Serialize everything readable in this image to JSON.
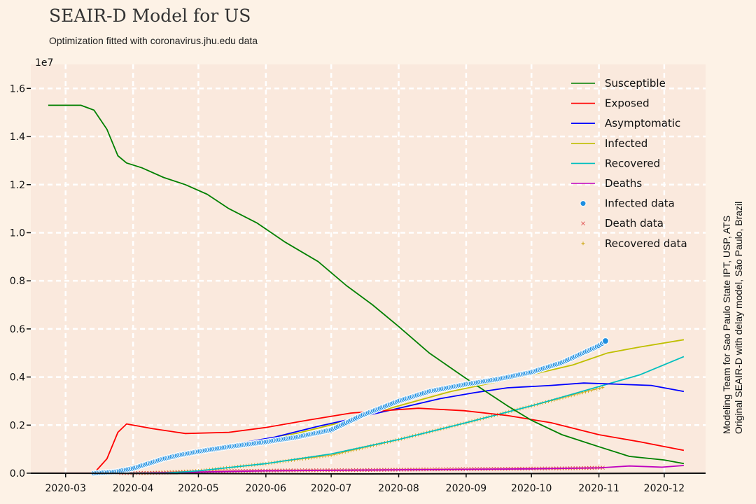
{
  "header": {
    "title": "SEAIR-D Model for US",
    "subtitle": "Optimization fitted with coronavirus.jhu.edu data"
  },
  "side_note": {
    "line1": "Modeling Team for Sao Paulo State IPT, USP, ATS",
    "line2": "Original SEAIR-D with delay model, São Paulo, Brazil"
  },
  "colors": {
    "background": "#fdf2e6",
    "plot_area": "#fae9dd",
    "grid": "#ffffff"
  },
  "chart_data": {
    "type": "line",
    "title": "SEAIR-D Model for US",
    "subtitle": "Optimization fitted with coronavirus.jhu.edu data",
    "y_exponent_label": "1e7",
    "x_range": [
      "2020-02-14",
      "2020-12-20"
    ],
    "ylim": [
      0,
      1.7
    ],
    "grid": true,
    "legend_position": "top-right",
    "x_ticks": [
      "2020-03",
      "2020-04",
      "2020-05",
      "2020-06",
      "2020-07",
      "2020-08",
      "2020-09",
      "2020-10",
      "2020-11",
      "2020-12"
    ],
    "x_tick_dates": [
      "2020-03-01",
      "2020-04-01",
      "2020-05-01",
      "2020-06-01",
      "2020-07-01",
      "2020-08-01",
      "2020-09-01",
      "2020-10-01",
      "2020-11-01",
      "2020-12-01"
    ],
    "y_ticks": [
      "0.0",
      "0.2",
      "0.4",
      "0.6",
      "0.8",
      "1.0",
      "1.2",
      "1.4",
      "1.6"
    ],
    "y_tick_values": [
      0,
      0.2,
      0.4,
      0.6,
      0.8,
      1.0,
      1.2,
      1.4,
      1.6
    ],
    "series": [
      {
        "name": "Susceptible",
        "kind": "line",
        "color": "#008000",
        "points": [
          [
            "2020-02-22",
            1.53
          ],
          [
            "2020-03-01",
            1.53
          ],
          [
            "2020-03-08",
            1.53
          ],
          [
            "2020-03-14",
            1.51
          ],
          [
            "2020-03-20",
            1.43
          ],
          [
            "2020-03-25",
            1.32
          ],
          [
            "2020-03-29",
            1.29
          ],
          [
            "2020-04-05",
            1.27
          ],
          [
            "2020-04-15",
            1.23
          ],
          [
            "2020-04-25",
            1.2
          ],
          [
            "2020-05-05",
            1.16
          ],
          [
            "2020-05-15",
            1.1
          ],
          [
            "2020-05-28",
            1.04
          ],
          [
            "2020-06-10",
            0.96
          ],
          [
            "2020-06-25",
            0.88
          ],
          [
            "2020-07-08",
            0.78
          ],
          [
            "2020-07-20",
            0.7
          ],
          [
            "2020-08-01",
            0.61
          ],
          [
            "2020-08-15",
            0.5
          ],
          [
            "2020-08-31",
            0.4
          ],
          [
            "2020-09-10",
            0.34
          ],
          [
            "2020-09-20",
            0.28
          ],
          [
            "2020-10-01",
            0.22
          ],
          [
            "2020-10-15",
            0.16
          ],
          [
            "2020-11-01",
            0.11
          ],
          [
            "2020-11-15",
            0.07
          ],
          [
            "2020-12-01",
            0.055
          ],
          [
            "2020-12-10",
            0.04
          ]
        ]
      },
      {
        "name": "Exposed",
        "kind": "line",
        "color": "#ff0000",
        "points": [
          [
            "2020-02-22",
            0.0
          ],
          [
            "2020-03-14",
            0.0
          ],
          [
            "2020-03-20",
            0.06
          ],
          [
            "2020-03-25",
            0.17
          ],
          [
            "2020-03-29",
            0.205
          ],
          [
            "2020-04-10",
            0.185
          ],
          [
            "2020-04-25",
            0.165
          ],
          [
            "2020-05-15",
            0.17
          ],
          [
            "2020-06-01",
            0.19
          ],
          [
            "2020-06-20",
            0.22
          ],
          [
            "2020-07-10",
            0.25
          ],
          [
            "2020-07-25",
            0.26
          ],
          [
            "2020-08-10",
            0.27
          ],
          [
            "2020-08-31",
            0.26
          ],
          [
            "2020-09-20",
            0.24
          ],
          [
            "2020-10-10",
            0.21
          ],
          [
            "2020-11-01",
            0.16
          ],
          [
            "2020-11-20",
            0.13
          ],
          [
            "2020-12-10",
            0.095
          ]
        ]
      },
      {
        "name": "Asymptomatic",
        "kind": "line",
        "color": "#0000ff",
        "points": [
          [
            "2020-02-22",
            0.0
          ],
          [
            "2020-03-14",
            0.0
          ],
          [
            "2020-03-25",
            0.01
          ],
          [
            "2020-04-05",
            0.04
          ],
          [
            "2020-04-20",
            0.07
          ],
          [
            "2020-05-05",
            0.1
          ],
          [
            "2020-05-20",
            0.125
          ],
          [
            "2020-06-05",
            0.15
          ],
          [
            "2020-06-25",
            0.195
          ],
          [
            "2020-07-15",
            0.235
          ],
          [
            "2020-08-01",
            0.27
          ],
          [
            "2020-08-20",
            0.31
          ],
          [
            "2020-09-05",
            0.335
          ],
          [
            "2020-09-20",
            0.355
          ],
          [
            "2020-10-10",
            0.365
          ],
          [
            "2020-10-25",
            0.375
          ],
          [
            "2020-11-10",
            0.37
          ],
          [
            "2020-11-25",
            0.365
          ],
          [
            "2020-12-10",
            0.34
          ]
        ]
      },
      {
        "name": "Infected",
        "kind": "line",
        "color": "#bfbf00",
        "points": [
          [
            "2020-02-22",
            0.0
          ],
          [
            "2020-03-14",
            0.0
          ],
          [
            "2020-03-25",
            0.01
          ],
          [
            "2020-04-05",
            0.04
          ],
          [
            "2020-04-20",
            0.075
          ],
          [
            "2020-05-05",
            0.1
          ],
          [
            "2020-05-25",
            0.13
          ],
          [
            "2020-06-15",
            0.165
          ],
          [
            "2020-07-05",
            0.21
          ],
          [
            "2020-07-20",
            0.25
          ],
          [
            "2020-08-05",
            0.29
          ],
          [
            "2020-08-25",
            0.34
          ],
          [
            "2020-09-10",
            0.37
          ],
          [
            "2020-10-01",
            0.41
          ],
          [
            "2020-10-20",
            0.45
          ],
          [
            "2020-11-05",
            0.5
          ],
          [
            "2020-11-20",
            0.525
          ],
          [
            "2020-12-10",
            0.555
          ]
        ]
      },
      {
        "name": "Recovered",
        "kind": "line",
        "color": "#00bfbf",
        "points": [
          [
            "2020-02-22",
            0.0
          ],
          [
            "2020-04-15",
            0.0
          ],
          [
            "2020-05-01",
            0.01
          ],
          [
            "2020-06-01",
            0.04
          ],
          [
            "2020-07-01",
            0.08
          ],
          [
            "2020-08-01",
            0.14
          ],
          [
            "2020-09-01",
            0.21
          ],
          [
            "2020-10-01",
            0.28
          ],
          [
            "2020-11-01",
            0.36
          ],
          [
            "2020-11-20",
            0.41
          ],
          [
            "2020-12-10",
            0.485
          ]
        ]
      },
      {
        "name": "Deaths",
        "kind": "line",
        "color": "#bf00bf",
        "points": [
          [
            "2020-02-22",
            0.0
          ],
          [
            "2020-04-01",
            0.0
          ],
          [
            "2020-05-01",
            0.005
          ],
          [
            "2020-06-01",
            0.01
          ],
          [
            "2020-07-01",
            0.012
          ],
          [
            "2020-08-01",
            0.014
          ],
          [
            "2020-09-01",
            0.016
          ],
          [
            "2020-10-01",
            0.018
          ],
          [
            "2020-11-01",
            0.022
          ],
          [
            "2020-11-15",
            0.03
          ],
          [
            "2020-11-30",
            0.025
          ],
          [
            "2020-12-10",
            0.032
          ]
        ]
      },
      {
        "name": "Infected data",
        "kind": "dots",
        "color": "#1f8fe0",
        "points": [
          [
            "2020-03-14",
            0.0
          ],
          [
            "2020-03-24",
            0.006
          ],
          [
            "2020-04-01",
            0.02
          ],
          [
            "2020-04-08",
            0.04
          ],
          [
            "2020-04-15",
            0.06
          ],
          [
            "2020-04-22",
            0.075
          ],
          [
            "2020-05-01",
            0.09
          ],
          [
            "2020-05-15",
            0.11
          ],
          [
            "2020-06-01",
            0.13
          ],
          [
            "2020-06-15",
            0.15
          ],
          [
            "2020-07-01",
            0.18
          ],
          [
            "2020-07-15",
            0.24
          ],
          [
            "2020-08-01",
            0.3
          ],
          [
            "2020-08-15",
            0.34
          ],
          [
            "2020-09-01",
            0.37
          ],
          [
            "2020-09-15",
            0.39
          ],
          [
            "2020-10-01",
            0.42
          ],
          [
            "2020-10-15",
            0.46
          ],
          [
            "2020-11-01",
            0.53
          ],
          [
            "2020-11-04",
            0.55
          ]
        ]
      },
      {
        "name": "Death data",
        "kind": "x",
        "color": "#e05050",
        "points": [
          [
            "2020-03-20",
            0.0
          ],
          [
            "2020-04-15",
            0.002
          ],
          [
            "2020-05-15",
            0.009
          ],
          [
            "2020-06-15",
            0.012
          ],
          [
            "2020-07-15",
            0.013
          ],
          [
            "2020-08-15",
            0.016
          ],
          [
            "2020-09-15",
            0.018
          ],
          [
            "2020-10-15",
            0.02
          ],
          [
            "2020-11-04",
            0.023
          ]
        ]
      },
      {
        "name": "Recovered data",
        "kind": "plus",
        "color": "#c8a200",
        "points": [
          [
            "2020-04-05",
            0.0
          ],
          [
            "2020-05-01",
            0.01
          ],
          [
            "2020-06-01",
            0.04
          ],
          [
            "2020-07-01",
            0.075
          ],
          [
            "2020-08-01",
            0.14
          ],
          [
            "2020-09-01",
            0.21
          ],
          [
            "2020-10-01",
            0.28
          ],
          [
            "2020-11-04",
            0.36
          ]
        ]
      }
    ]
  }
}
